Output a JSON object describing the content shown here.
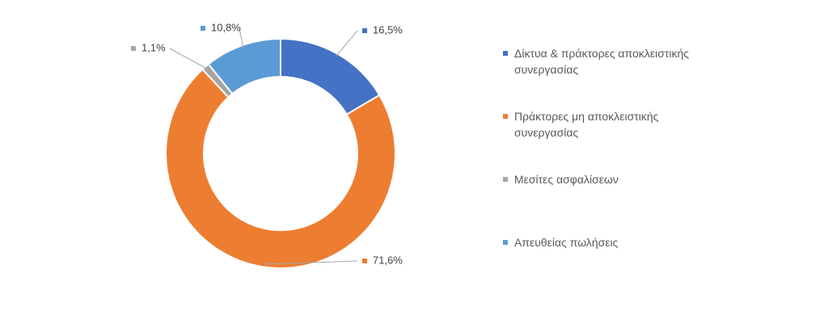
{
  "chart_data": {
    "type": "donut",
    "categories": [
      "Δίκτυα & πράκτορες αποκλειστικής συνεργασίας",
      "Πράκτορες μη αποκλειστικής συνεργασίας",
      "Μεσίτες ασφαλίσεων",
      "Απευθείας πωλήσεις"
    ],
    "values": [
      16.5,
      71.6,
      1.1,
      10.8
    ],
    "value_labels": [
      "16,5%",
      "71,6%",
      "1,1%",
      "10,8%"
    ],
    "colors": [
      "#4472c4",
      "#ed7d31",
      "#a5a5a5",
      "#5b9bd5"
    ],
    "legend": "right"
  }
}
